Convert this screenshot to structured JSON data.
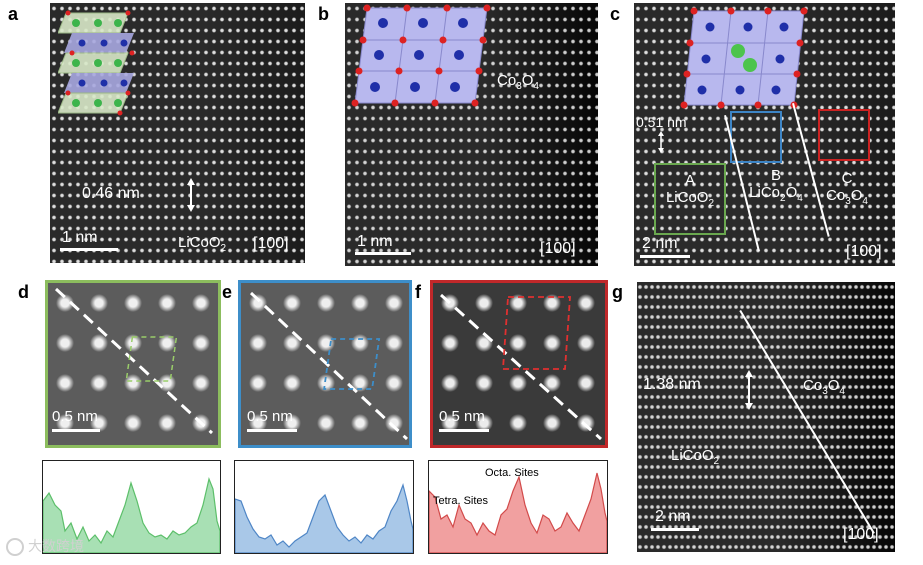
{
  "panels": {
    "a": {
      "letter": "a",
      "spacing": "0.46 nm",
      "scale": "1 nm",
      "material": "LiCoO",
      "material_sub": "2",
      "zone": "[100]"
    },
    "b": {
      "letter": "b",
      "material": "Co",
      "material_sub1": "3",
      "material_o": "O",
      "material_sub2": "4",
      "scale": "1 nm",
      "zone": "[100]"
    },
    "c": {
      "letter": "c",
      "spacing": "0.51 nm",
      "scale": "2 nm",
      "zone": "[100]",
      "regions": [
        {
          "id": "A",
          "name": "LiCoO",
          "sub": "2",
          "color": "#6aa84f"
        },
        {
          "id": "B",
          "name": "LiCo",
          "sub": "2",
          "name2": "O",
          "sub2": "4",
          "color": "#3d85c6"
        },
        {
          "id": "C",
          "name": "Co",
          "sub": "3",
          "name2": "O",
          "sub2": "4",
          "color": "#cc2222"
        }
      ]
    },
    "d": {
      "letter": "d",
      "scale": "0.5 nm",
      "frame_color": "#8cbd5e",
      "fill": "#a8e0b4"
    },
    "e": {
      "letter": "e",
      "scale": "0.5 nm",
      "frame_color": "#3d8ec9",
      "fill": "#a9c8e8"
    },
    "f": {
      "letter": "f",
      "scale": "0.5 nm",
      "frame_color": "#c0282a",
      "fill": "#f1a0a0",
      "octa_label": "Octa. Sites",
      "tetra_label": "Tetra. Sites"
    },
    "g": {
      "letter": "g",
      "spacing": "1.38 nm",
      "scale": "2 nm",
      "zone": "[100]",
      "left_material": "LiCoO",
      "left_sub": "2",
      "right_material": "Co",
      "right_sub1": "3",
      "right_o": "O",
      "right_sub2": "4"
    }
  },
  "watermark": "大数跨境"
}
